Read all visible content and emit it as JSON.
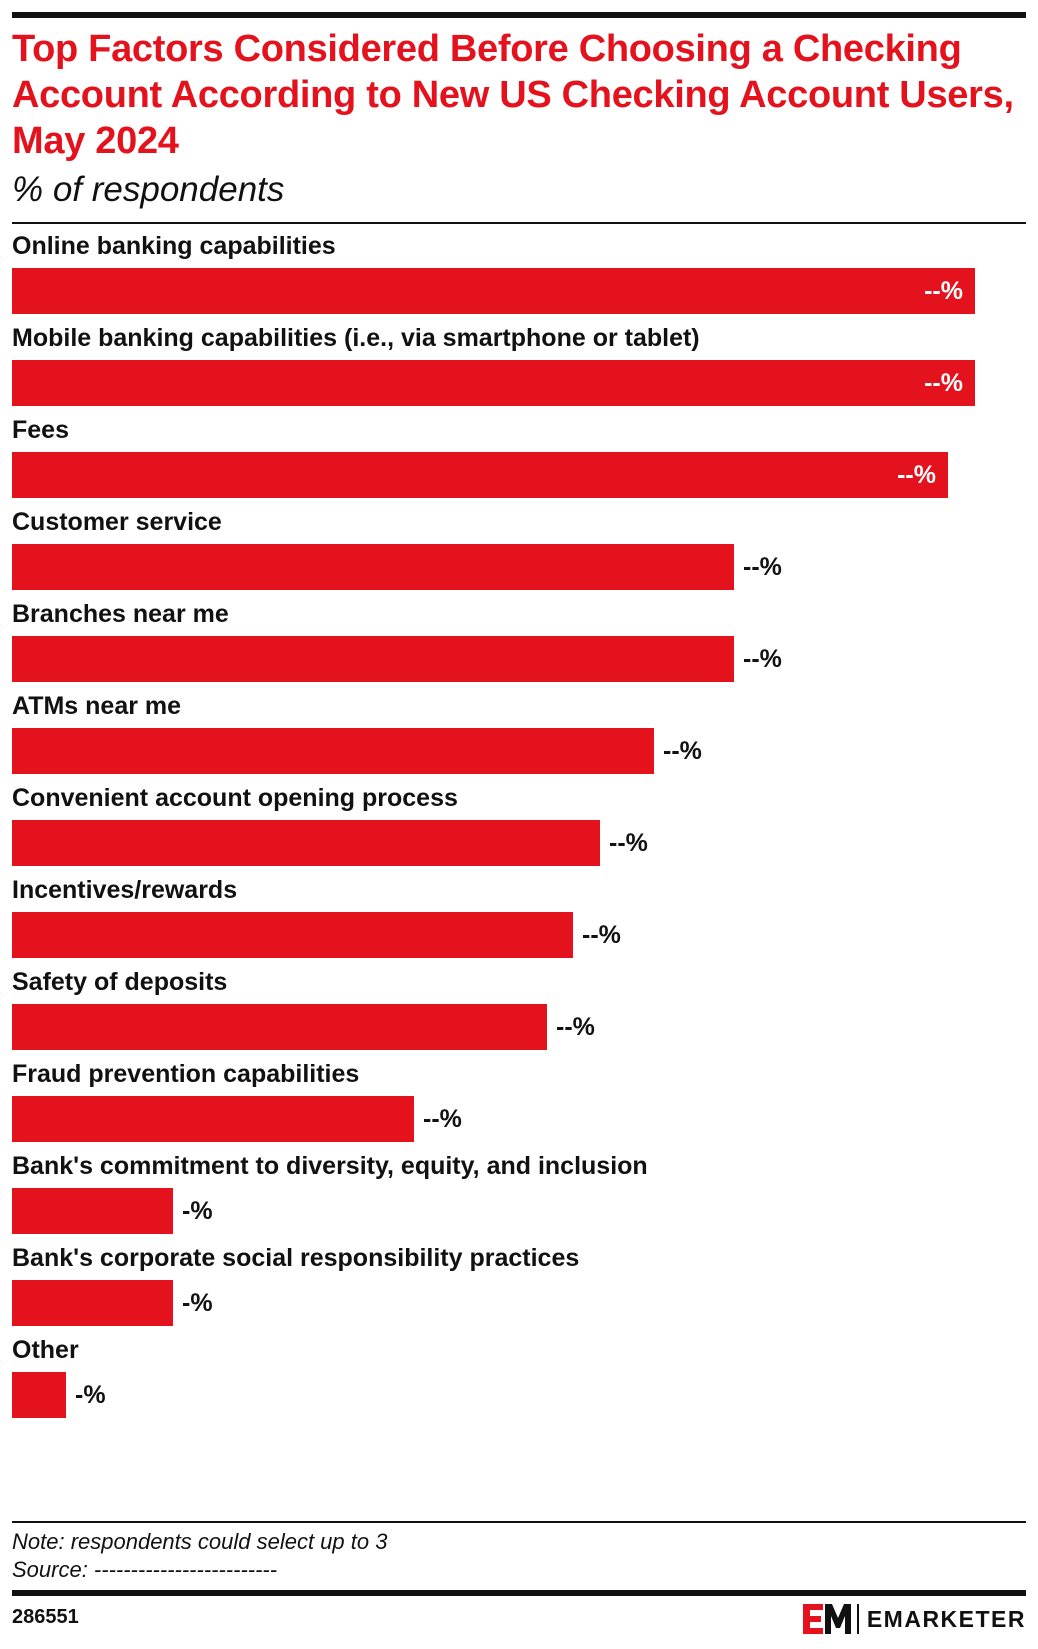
{
  "header": {
    "title": "Top Factors Considered Before Choosing a Checking Account According to New US Checking Account Users, May 2024",
    "subtitle": "% of respondents"
  },
  "chart_data": {
    "type": "bar",
    "orientation": "horizontal",
    "title": "Top Factors Considered Before Choosing a Checking Account According to New US Checking Account Users, May 2024",
    "subtitle": "% of respondents",
    "categories": [
      "Online banking capabilities",
      "Mobile banking capabilities (i.e., via smartphone or tablet)",
      "Fees",
      "Customer service",
      "Branches near me",
      "ATMs near me",
      "Convenient account opening process",
      "Incentives/rewards",
      "Safety of deposits",
      "Fraud prevention capabilities",
      "Bank's commitment to diversity, equity, and inclusion",
      "Bank's corporate social responsibility practices",
      "Other"
    ],
    "values": [
      100,
      100,
      97.2,
      75,
      75,
      66.7,
      61.1,
      58.3,
      55.6,
      41.7,
      16.7,
      16.7,
      5.6
    ],
    "value_labels": [
      "--%",
      "--%",
      "--%",
      "--%",
      "--%",
      "--%",
      "--%",
      "--%",
      "--%",
      "--%",
      "-%",
      "-%",
      "-%"
    ],
    "xlim": [
      0,
      100
    ],
    "grid": false,
    "legend": "none",
    "bar_color": "#e3121d"
  },
  "footer": {
    "note": "Note: respondents could select up to 3",
    "source": "Source: -------------------------",
    "chart_id": "286551",
    "brand": "EMARKETER"
  },
  "colors": {
    "accent": "#e3121d",
    "text": "#111111"
  }
}
